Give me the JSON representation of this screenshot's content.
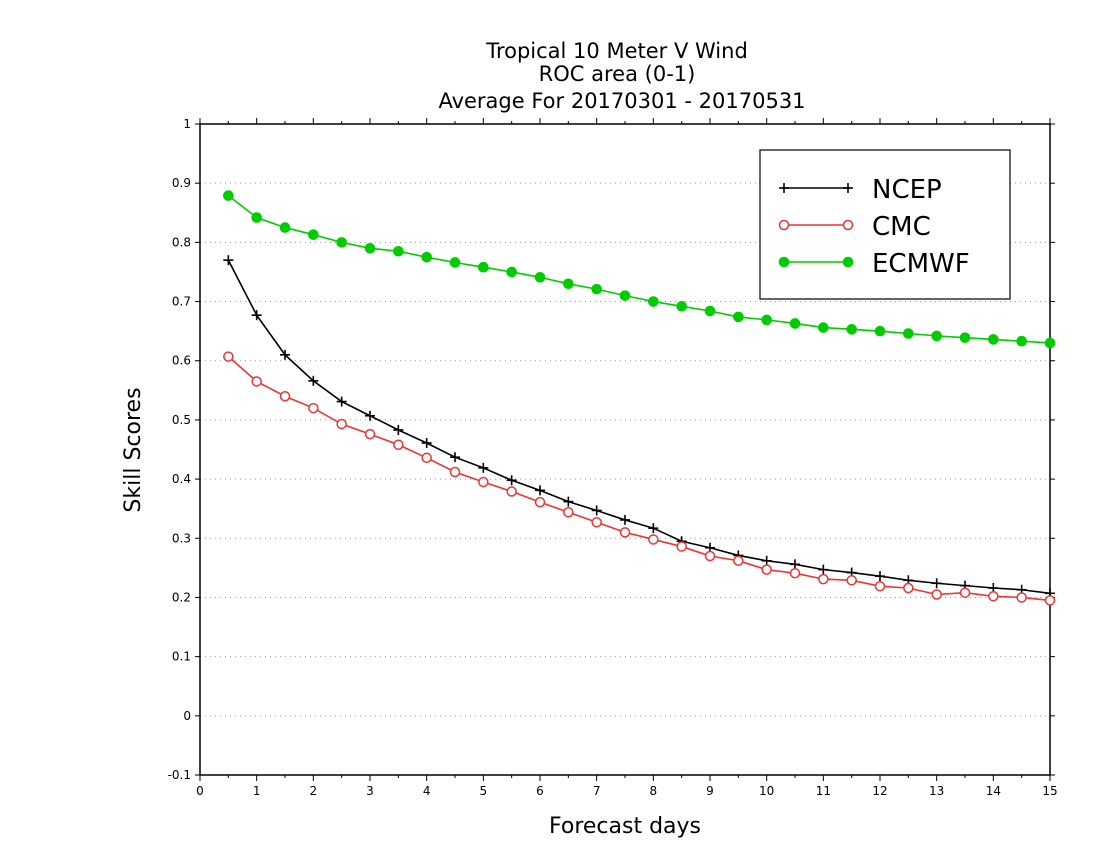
{
  "chart_data": {
    "type": "line",
    "title_lines": [
      "Tropical 10 Meter V Wind",
      "ROC area (0-1)",
      "Average For 20170301 - 20170531"
    ],
    "xlabel": "Forecast days",
    "ylabel": "Skill Scores",
    "xlim": [
      0,
      15
    ],
    "ylim": [
      -0.1,
      1
    ],
    "xticks": [
      "0",
      "1",
      "2",
      "3",
      "4",
      "5",
      "6",
      "7",
      "8",
      "9",
      "10",
      "11",
      "12",
      "13",
      "14",
      "15"
    ],
    "yticks": [
      "-0.1",
      "0",
      "0.1",
      "0.2",
      "0.3",
      "0.4",
      "0.5",
      "0.6",
      "0.7",
      "0.8",
      "0.9",
      "1"
    ],
    "grid": true,
    "legend_position": "top-right",
    "x": [
      0.5,
      1,
      1.5,
      2,
      2.5,
      3,
      3.5,
      4,
      4.5,
      5,
      5.5,
      6,
      6.5,
      7,
      7.5,
      8,
      8.5,
      9,
      9.5,
      10,
      10.5,
      11,
      11.5,
      12,
      12.5,
      13,
      13.5,
      14,
      14.5,
      15
    ],
    "series": [
      {
        "name": "NCEP",
        "color": "#000000",
        "marker": "plus",
        "values": [
          0.77,
          0.677,
          0.61,
          0.566,
          0.531,
          0.507,
          0.483,
          0.461,
          0.437,
          0.419,
          0.398,
          0.381,
          0.362,
          0.347,
          0.331,
          0.317,
          0.295,
          0.284,
          0.271,
          0.262,
          0.256,
          0.247,
          0.242,
          0.236,
          0.229,
          0.224,
          0.22,
          0.216,
          0.213,
          0.207
        ]
      },
      {
        "name": "CMC",
        "color": "#ee3333",
        "marker": "open-circle",
        "values": [
          0.607,
          0.565,
          0.54,
          0.52,
          0.493,
          0.476,
          0.458,
          0.436,
          0.412,
          0.395,
          0.379,
          0.361,
          0.344,
          0.327,
          0.31,
          0.298,
          0.286,
          0.27,
          0.262,
          0.247,
          0.241,
          0.231,
          0.229,
          0.219,
          0.216,
          0.205,
          0.208,
          0.202,
          0.2,
          0.195
        ]
      },
      {
        "name": "ECMWF",
        "color": "#00cc00",
        "marker": "filled-circle",
        "values": [
          0.879,
          0.842,
          0.825,
          0.813,
          0.8,
          0.79,
          0.785,
          0.775,
          0.766,
          0.758,
          0.75,
          0.741,
          0.73,
          0.721,
          0.71,
          0.7,
          0.692,
          0.684,
          0.674,
          0.669,
          0.663,
          0.656,
          0.653,
          0.65,
          0.646,
          0.642,
          0.639,
          0.636,
          0.633,
          0.63
        ]
      }
    ]
  }
}
